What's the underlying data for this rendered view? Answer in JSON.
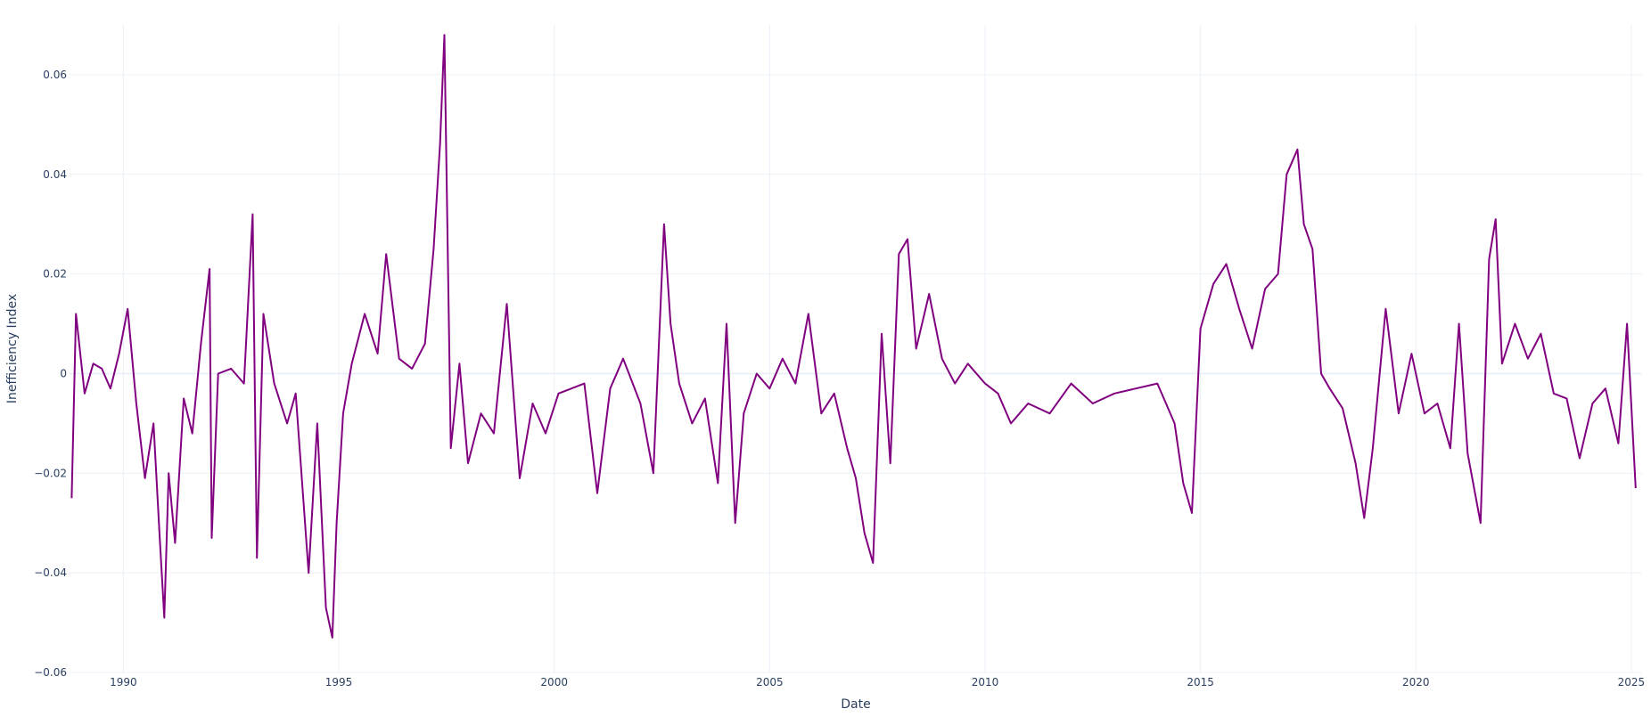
{
  "chart_data": {
    "type": "line",
    "xlabel": "Date",
    "ylabel": "Inefficiency Index",
    "xlim": [
      1988.75,
      2025.25
    ],
    "ylim": [
      -0.06,
      0.07
    ],
    "x_ticks": [
      1990,
      1995,
      2000,
      2005,
      2010,
      2015,
      2020,
      2025
    ],
    "y_ticks": [
      -0.06,
      -0.04,
      -0.02,
      0,
      0.02,
      0.04,
      0.06
    ],
    "y_tick_labels": [
      "−0.06",
      "−0.04",
      "−0.02",
      "0",
      "0.02",
      "0.04",
      "0.06"
    ],
    "grid": true,
    "line_color": "#800080",
    "series": [
      {
        "x": [
          1988.8,
          1988.9,
          1989.1,
          1989.3,
          1989.5,
          1989.7,
          1989.9,
          1990.1,
          1990.3,
          1990.5,
          1990.7,
          1990.85,
          1990.95,
          1991.05,
          1991.2,
          1991.4,
          1991.6,
          1991.8,
          1992.0,
          1992.05,
          1992.2,
          1992.5,
          1992.8,
          1993.0,
          1993.1,
          1993.25,
          1993.5,
          1993.8,
          1994.0,
          1994.3,
          1994.5,
          1994.7,
          1994.85,
          1994.95,
          1995.1,
          1995.3,
          1995.6,
          1995.9,
          1996.1,
          1996.4,
          1996.7,
          1997.0,
          1997.2,
          1997.35,
          1997.45,
          1997.6,
          1997.8,
          1998.0,
          1998.3,
          1998.6,
          1998.9,
          1999.2,
          1999.5,
          1999.8,
          2000.1,
          2000.4,
          2000.7,
          2001.0,
          2001.3,
          2001.6,
          2002.0,
          2002.3,
          2002.55,
          2002.7,
          2002.9,
          2003.2,
          2003.5,
          2003.8,
          2004.0,
          2004.2,
          2004.4,
          2004.7,
          2005.0,
          2005.3,
          2005.6,
          2005.9,
          2006.2,
          2006.5,
          2006.8,
          2007.0,
          2007.2,
          2007.4,
          2007.6,
          2007.8,
          2008.0,
          2008.2,
          2008.4,
          2008.7,
          2009.0,
          2009.3,
          2009.6,
          2010.0,
          2010.3,
          2010.6,
          2011.0,
          2011.5,
          2012.0,
          2012.5,
          2013.0,
          2013.5,
          2014.0,
          2014.4,
          2014.6,
          2014.8,
          2015.0,
          2015.3,
          2015.6,
          2015.9,
          2016.2,
          2016.5,
          2016.8,
          2017.0,
          2017.25,
          2017.4,
          2017.6,
          2017.8,
          2018.0,
          2018.3,
          2018.6,
          2018.8,
          2019.0,
          2019.3,
          2019.6,
          2019.9,
          2020.2,
          2020.5,
          2020.8,
          2021.0,
          2021.2,
          2021.5,
          2021.7,
          2021.85,
          2022.0,
          2022.3,
          2022.6,
          2022.9,
          2023.2,
          2023.5,
          2023.8,
          2024.1,
          2024.4,
          2024.7,
          2024.9,
          2025.1
        ],
        "values": [
          -0.025,
          0.012,
          -0.004,
          0.002,
          0.001,
          -0.003,
          0.004,
          0.013,
          -0.006,
          -0.021,
          -0.01,
          -0.034,
          -0.049,
          -0.02,
          -0.034,
          -0.005,
          -0.012,
          0.006,
          0.021,
          -0.033,
          0.0,
          0.001,
          -0.002,
          0.032,
          -0.037,
          0.012,
          -0.002,
          -0.01,
          -0.004,
          -0.04,
          -0.01,
          -0.047,
          -0.053,
          -0.03,
          -0.008,
          0.002,
          0.012,
          0.004,
          0.024,
          0.003,
          0.001,
          0.006,
          0.025,
          0.046,
          0.068,
          -0.015,
          0.002,
          -0.018,
          -0.008,
          -0.012,
          0.014,
          -0.021,
          -0.006,
          -0.012,
          -0.004,
          -0.003,
          -0.002,
          -0.024,
          -0.003,
          0.003,
          -0.006,
          -0.02,
          0.03,
          0.01,
          -0.002,
          -0.01,
          -0.005,
          -0.022,
          0.01,
          -0.03,
          -0.008,
          0.0,
          -0.003,
          0.003,
          -0.002,
          0.012,
          -0.008,
          -0.004,
          -0.015,
          -0.021,
          -0.032,
          -0.038,
          0.008,
          -0.018,
          0.024,
          0.027,
          0.005,
          0.016,
          0.003,
          -0.002,
          0.002,
          -0.002,
          -0.004,
          -0.01,
          -0.006,
          -0.008,
          -0.002,
          -0.006,
          -0.004,
          -0.003,
          -0.002,
          -0.01,
          -0.022,
          -0.028,
          0.009,
          0.018,
          0.022,
          0.013,
          0.005,
          0.017,
          0.02,
          0.04,
          0.045,
          0.03,
          0.025,
          0.0,
          -0.003,
          -0.007,
          -0.018,
          -0.029,
          -0.015,
          0.013,
          -0.008,
          0.004,
          -0.008,
          -0.006,
          -0.015,
          0.01,
          -0.016,
          -0.03,
          0.023,
          0.031,
          0.002,
          0.01,
          0.003,
          0.008,
          -0.004,
          -0.005,
          -0.017,
          -0.006,
          -0.003,
          -0.014,
          0.01,
          -0.023
        ]
      }
    ]
  }
}
